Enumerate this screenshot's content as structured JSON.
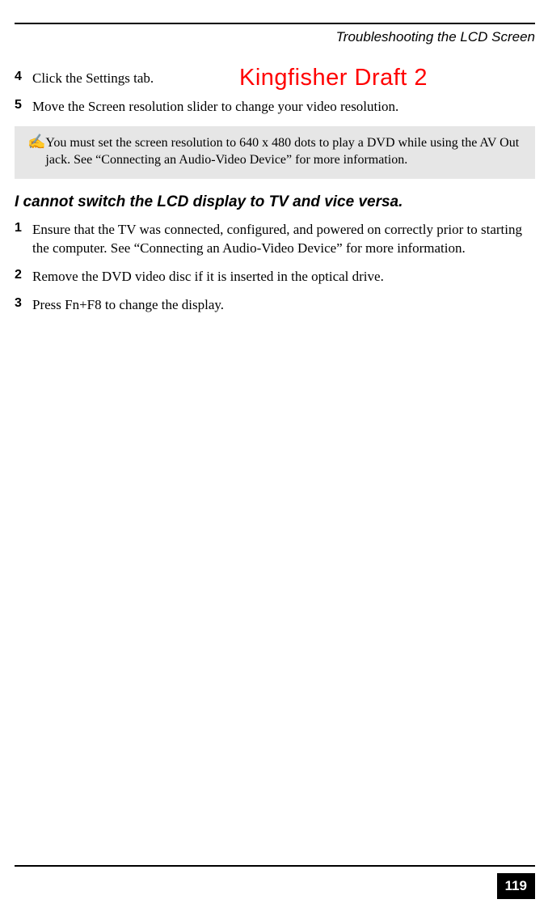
{
  "header": {
    "title": "Troubleshooting the LCD Screen"
  },
  "watermark": {
    "text": "Kingfisher Draft 2",
    "color": "#ff0000"
  },
  "steps_a": [
    {
      "num": "4",
      "text": "Click the Settings tab."
    },
    {
      "num": "5",
      "text": "Move the Screen resolution slider to change your video resolution."
    }
  ],
  "note": {
    "icon": "✍",
    "text": "You must set the screen resolution to 640 x 480 dots to play a DVD while using the AV Out jack. See “Connecting an Audio-Video Device” for more information."
  },
  "section_heading": "I cannot switch the LCD display to TV and vice versa.",
  "steps_b": [
    {
      "num": "1",
      "text": "Ensure that the TV was connected, configured, and powered on correctly prior to starting the computer. See “Connecting an Audio-Video Device” for more information."
    },
    {
      "num": "2",
      "text": "Remove the DVD video disc if it is inserted in the optical drive."
    },
    {
      "num": "3",
      "text": "Press Fn+F8 to change the display."
    }
  ],
  "page_number": "119",
  "colors": {
    "rule": "#000000",
    "note_bg": "#e6e6e6",
    "pagebox_bg": "#000000",
    "pagebox_fg": "#ffffff"
  }
}
